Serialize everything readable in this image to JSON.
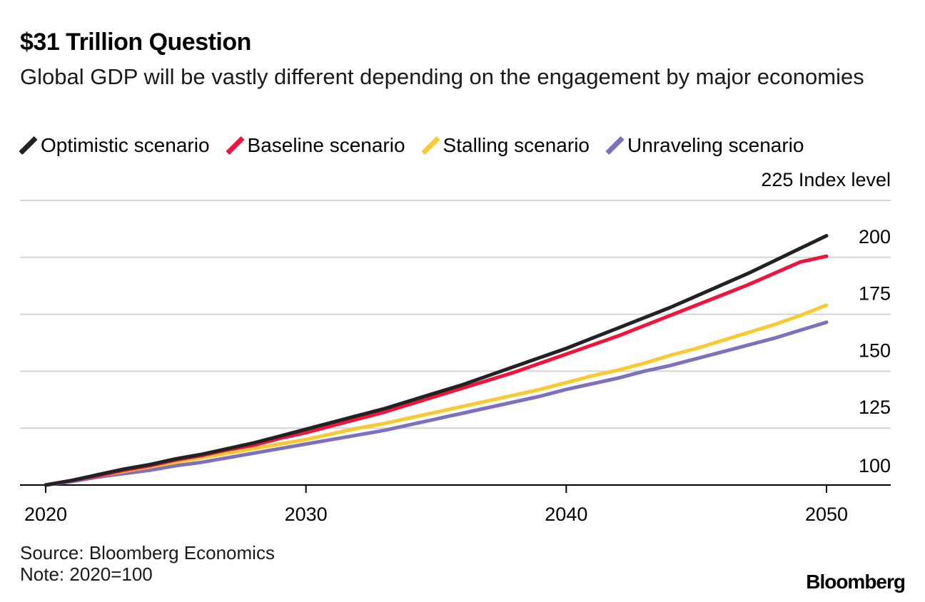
{
  "header": {
    "title": "$31 Trillion Question",
    "subtitle": "Global GDP will be vastly different depending on the engagement by major economies"
  },
  "footer": {
    "source": "Source: Bloomberg Economics",
    "note": "Note: 2020=100",
    "logo": "Bloomberg"
  },
  "chart_data": {
    "type": "line",
    "title": "$31 Trillion Question",
    "subtitle": "Global GDP will be vastly different depending on the engagement by major economies",
    "xlabel": "",
    "ylabel": "Index level",
    "ylim": [
      100,
      225
    ],
    "xlim": [
      2019,
      2052.5
    ],
    "x_ticks": [
      2020,
      2030,
      2040,
      2050
    ],
    "y_ticks": [
      100,
      125,
      150,
      175,
      200,
      225
    ],
    "y_tick_labels": [
      "100",
      "125",
      "150",
      "175",
      "200",
      "225 Index level"
    ],
    "grid": true,
    "legend_position": "top",
    "x": [
      2020,
      2021,
      2022,
      2023,
      2024,
      2025,
      2026,
      2027,
      2028,
      2029,
      2030,
      2031,
      2032,
      2033,
      2034,
      2035,
      2036,
      2037,
      2038,
      2039,
      2040,
      2041,
      2042,
      2043,
      2044,
      2045,
      2046,
      2047,
      2048,
      2049,
      2050
    ],
    "series": [
      {
        "name": "Optimistic scenario",
        "color": "#222222",
        "values": [
          100,
          102,
          104.5,
          107,
          109,
          111.5,
          113.5,
          116,
          118.5,
          121.5,
          124.5,
          127.5,
          130.5,
          133.5,
          137,
          140.5,
          144,
          148,
          152,
          156,
          160,
          164.5,
          169,
          173.5,
          178,
          183,
          188,
          193,
          198.5,
          204,
          209.5
        ]
      },
      {
        "name": "Baseline scenario",
        "color": "#f0133c",
        "values": [
          100,
          102,
          104,
          106.5,
          108.5,
          111,
          113,
          115.5,
          117.5,
          120.5,
          123,
          126,
          129,
          132,
          135.5,
          139,
          142.5,
          146,
          149.5,
          153.5,
          157.5,
          161.5,
          165.5,
          170,
          174.5,
          179,
          183.5,
          188,
          193,
          198,
          200.5
        ]
      },
      {
        "name": "Stalling scenario",
        "color": "#f9c932",
        "values": [
          100,
          102,
          104,
          106,
          108,
          110,
          112,
          114,
          116,
          118,
          120,
          122.5,
          125,
          127,
          129.5,
          132,
          134.5,
          137,
          139.5,
          142,
          145,
          148,
          150.5,
          153.5,
          157,
          160,
          163.5,
          167,
          170.5,
          174.5,
          179
        ]
      },
      {
        "name": "Unraveling scenario",
        "color": "#7e70bc",
        "values": [
          100,
          101.5,
          103.5,
          105,
          106.5,
          108.5,
          110,
          112,
          114,
          116,
          118,
          120,
          122,
          124,
          126.5,
          129,
          131.5,
          134,
          136.5,
          139,
          142,
          144.5,
          147,
          150,
          152.5,
          155.5,
          158.5,
          161.5,
          164.5,
          168,
          171.5
        ]
      }
    ]
  }
}
